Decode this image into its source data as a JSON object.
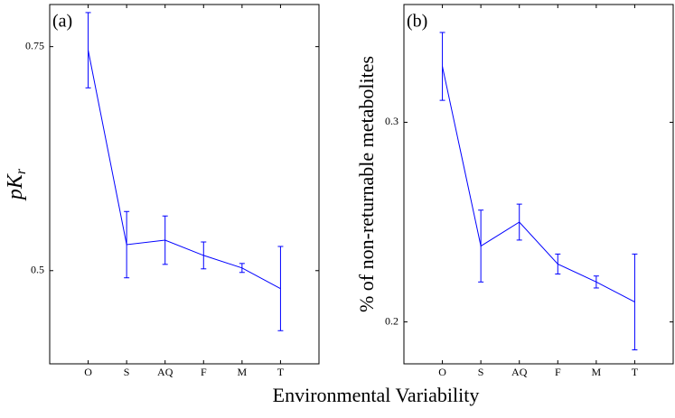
{
  "chart_data": [
    {
      "type": "line",
      "panel_label": "(a)",
      "ylabel": "pK",
      "ylabel_sub": "r",
      "categories": [
        "O",
        "S",
        "AQ",
        "F",
        "M",
        "T"
      ],
      "series": [
        {
          "color": "#0000ff",
          "values": [
            0.746,
            0.529,
            0.534,
            0.517,
            0.503,
            0.48
          ],
          "errors": [
            0.042,
            0.037,
            0.027,
            0.015,
            0.005,
            0.047
          ]
        }
      ],
      "ylim": [
        0.396,
        0.797
      ],
      "yticks": [
        0.5,
        0.75
      ]
    },
    {
      "type": "line",
      "panel_label": "(b)",
      "ylabel": "% of non-returnable metabolites",
      "categories": [
        "O",
        "S",
        "AQ",
        "F",
        "M",
        "T"
      ],
      "series": [
        {
          "color": "#0000ff",
          "values": [
            0.328,
            0.238,
            0.25,
            0.229,
            0.22,
            0.21
          ],
          "errors": [
            0.017,
            0.018,
            0.009,
            0.005,
            0.003,
            0.024
          ]
        }
      ],
      "ylim": [
        0.179,
        0.359
      ],
      "yticks": [
        0.2,
        0.3
      ]
    }
  ],
  "xlabel": "Environmental Variability"
}
